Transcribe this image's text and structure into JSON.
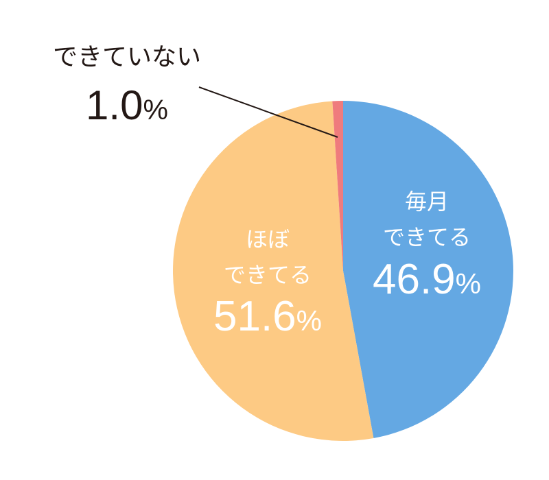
{
  "chart_data": {
    "type": "pie",
    "title": "",
    "start_angle_deg": 0,
    "direction": "clockwise",
    "slices": [
      {
        "label_lines": [
          "毎月",
          "できてる"
        ],
        "value": 46.9,
        "value_text": "46.9",
        "unit": "%",
        "color": "#64a8e3",
        "label_color": "#ffffff"
      },
      {
        "label_lines": [
          "ほぼ",
          "できてる"
        ],
        "value": 51.6,
        "value_text": "51.6",
        "unit": "%",
        "color": "#fdca84",
        "label_color": "#ffffff"
      },
      {
        "label_lines": [
          "できていない"
        ],
        "value": 1.0,
        "value_text": "1.0",
        "unit": "%",
        "color": "#ef7b7d",
        "label_color": "#231815",
        "callout": true
      }
    ]
  }
}
